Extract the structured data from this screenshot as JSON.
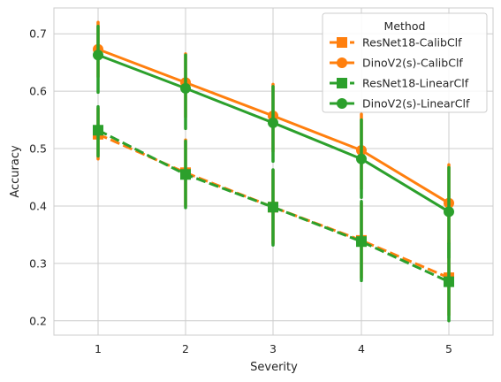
{
  "chart_data": {
    "type": "line",
    "xlabel": "Severity",
    "ylabel": "Accuracy",
    "categories": [
      "1",
      "2",
      "3",
      "4",
      "5"
    ],
    "ylim": [
      0.175,
      0.745
    ],
    "yticks": [
      "0.2",
      "0.3",
      "0.4",
      "0.5",
      "0.6",
      "0.7"
    ],
    "grid": true,
    "legend": {
      "title": "Method",
      "position": "top-right"
    },
    "series": [
      {
        "name": "ResNet18-CalibClf",
        "color": "#ff7f0e",
        "marker": "square",
        "linestyle": "dashed",
        "values": [
          0.525,
          0.458,
          0.398,
          0.34,
          0.275
        ],
        "ci_low": [
          0.482,
          0.4,
          0.335,
          0.275,
          0.21
        ],
        "ci_high": [
          0.57,
          0.515,
          0.462,
          0.405,
          0.34
        ]
      },
      {
        "name": "DinoV2(s)-CalibClf",
        "color": "#ff7f0e",
        "marker": "circle",
        "linestyle": "solid",
        "values": [
          0.673,
          0.615,
          0.557,
          0.497,
          0.405
        ],
        "ci_low": [
          0.625,
          0.555,
          0.495,
          0.43,
          0.335
        ],
        "ci_high": [
          0.72,
          0.665,
          0.612,
          0.56,
          0.472
        ]
      },
      {
        "name": "ResNet18-LinearClf",
        "color": "#2ca02c",
        "marker": "square",
        "linestyle": "dashed",
        "values": [
          0.532,
          0.455,
          0.398,
          0.338,
          0.268
        ],
        "ci_low": [
          0.487,
          0.397,
          0.332,
          0.27,
          0.2
        ],
        "ci_high": [
          0.573,
          0.513,
          0.463,
          0.408,
          0.335
        ]
      },
      {
        "name": "DinoV2(s)-LinearClf",
        "color": "#2ca02c",
        "marker": "circle",
        "linestyle": "solid",
        "values": [
          0.663,
          0.605,
          0.545,
          0.482,
          0.39
        ],
        "ci_low": [
          0.598,
          0.535,
          0.478,
          0.415,
          0.31
        ],
        "ci_high": [
          0.713,
          0.663,
          0.608,
          0.55,
          0.467
        ]
      }
    ]
  }
}
